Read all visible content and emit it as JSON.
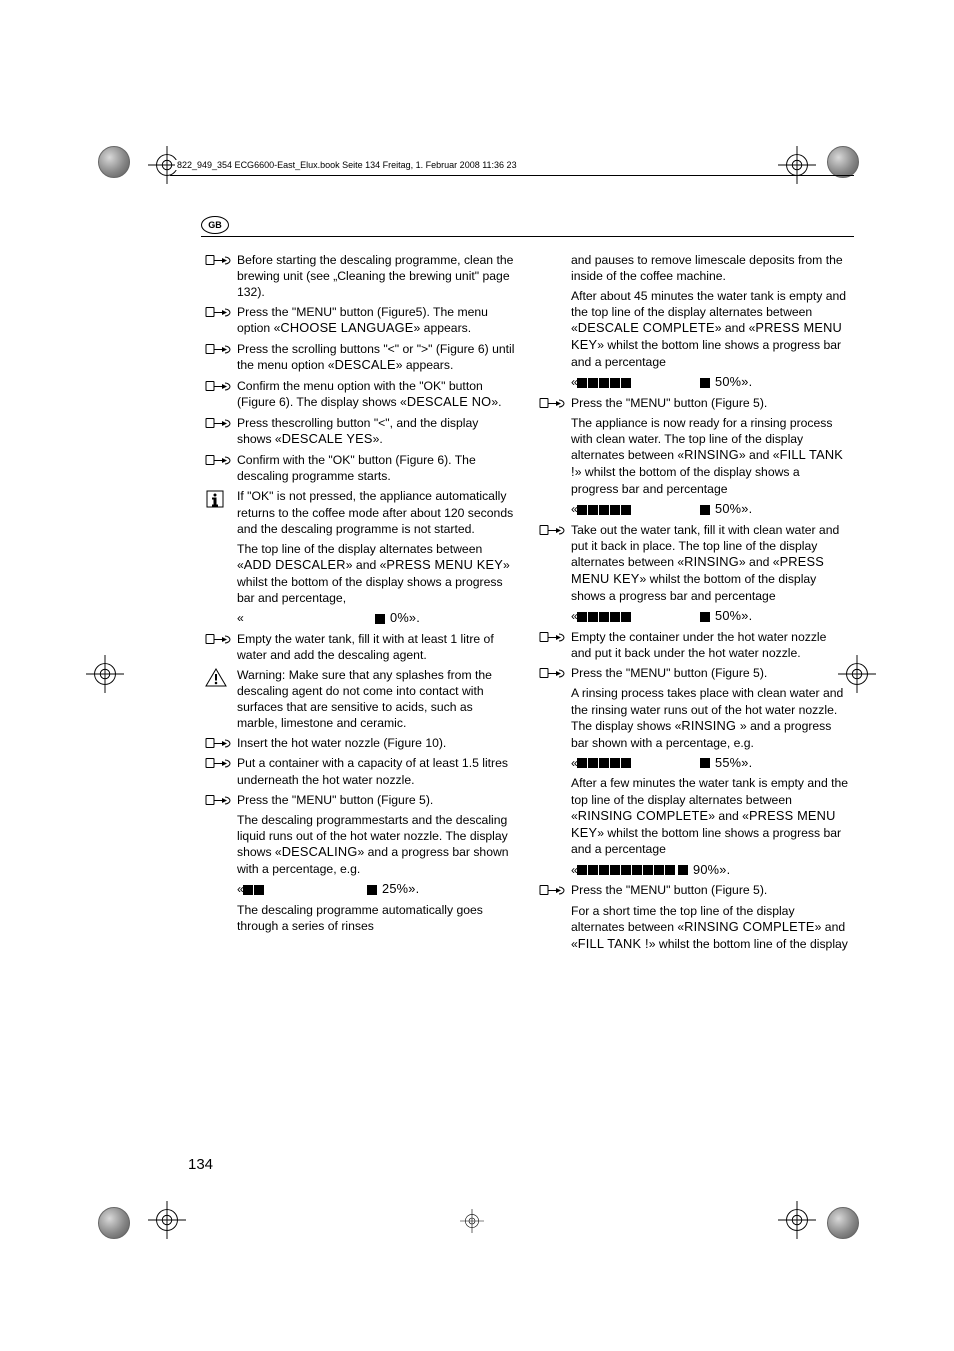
{
  "header": {
    "doc_line": "822_949_354 ECG6600-East_Elux.book  Seite 134  Freitag, 1. Februar 2008  11:36 23",
    "gb_label": "GB"
  },
  "page_number": "134",
  "left_column": [
    {
      "type": "hand",
      "text": "Before starting the descaling programme, clean the brewing unit (see „Cleaning the brewing unit\" page 132)."
    },
    {
      "type": "hand",
      "text": "Press the \"MENU\" button (Figure5). The menu option «",
      "disp": "CHOOSE LANGUAGE",
      "text2": "» appears."
    },
    {
      "type": "hand",
      "text": "Press the scrolling buttons \"<\" or \">\" (Figure 6) until the menu option «",
      "disp": "DESCALE",
      "text2": "» appears."
    },
    {
      "type": "hand",
      "text": "Confirm the menu option with the \"OK\" button (Figure 6). The display shows «",
      "disp": "DESCALE NO",
      "text2": "»."
    },
    {
      "type": "hand",
      "text": "Press thescrolling button \"<\", and the display shows «",
      "disp": "DESCALE YES",
      "text2": "»."
    },
    {
      "type": "hand",
      "text": "Confirm with the \"OK\" button (Figure 6). The descaling programme starts."
    },
    {
      "type": "info",
      "text": "If \"OK\" is not pressed, the appliance automatically returns to the coffee mode after about 120 seconds and the descaling programme is not started."
    },
    {
      "type": "cont",
      "text": "The top line of the display alternates between «",
      "disp": "ADD DESCALER",
      "text2": "» and «",
      "disp2": "PRESS MENU KEY",
      "text3": "» whilst the bottom of the display shows a progress bar and percentage,"
    },
    {
      "type": "cont_bar",
      "prefix": "«",
      "squares": 0,
      "spacer": 132,
      "end_squares": 1,
      "percent": " 0%».",
      "halflead": true
    },
    {
      "type": "hand",
      "text": "Empty the water tank, fill it with at least 1 litre of water and add the descaling agent."
    },
    {
      "type": "warn",
      "text": "Warning: Make sure that any splashes from the descaling agent do not come into contact with surfaces that are sensitive to acids, such as marble, limestone and ceramic."
    },
    {
      "type": "hand",
      "text": "Insert the hot water nozzle (Figure 10)."
    },
    {
      "type": "hand",
      "text": "Put a container with a capacity of at least 1.5 litres underneath the hot water nozzle."
    },
    {
      "type": "hand",
      "text": "Press the \"MENU\" button (Figure 5)."
    },
    {
      "type": "cont",
      "text": "The descaling programmestarts and the descaling liquid runs out of the hot water nozzle. The display shows «",
      "disp": "DESCALING",
      "text2": "» and a progress bar shown with a percentage, e.g."
    },
    {
      "type": "cont_bar",
      "prefix": "«",
      "squares": 2,
      "spacer": 102,
      "end_squares": 1,
      "percent": " 25%»."
    },
    {
      "type": "cont",
      "text": "The descaling programme automatically goes through a series of rinses"
    }
  ],
  "right_column": [
    {
      "type": "cont",
      "text": "and pauses to remove limescale deposits from the inside of the coffee machine."
    },
    {
      "type": "cont",
      "text": "After about 45 minutes the water tank is empty and the top line of the display alternates between «",
      "disp": "DESCALE COMPLETE",
      "text2": "» and «",
      "disp2": "PRESS MENU KEY",
      "text3": "» whilst the bottom line shows a progress bar and a percentage"
    },
    {
      "type": "cont_bar",
      "prefix": "«",
      "squares": 5,
      "spacer": 68,
      "end_squares": 1,
      "percent": " 50%»."
    },
    {
      "type": "hand",
      "text": "Press the \"MENU\" button (Figure 5)."
    },
    {
      "type": "cont",
      "text": "The appliance is now ready for a rinsing process with clean water. The top line of the display alternates between «",
      "disp": "RINSING",
      "text2": "» and «",
      "disp2": "FILL TANK !",
      "text3": "» whilst the bottom of the display shows a progress bar and percentage"
    },
    {
      "type": "cont_bar",
      "prefix": "«",
      "squares": 5,
      "spacer": 68,
      "end_squares": 1,
      "percent": " 50%»."
    },
    {
      "type": "hand",
      "text": "Take out the water tank, fill it with clean water and put it back in place. The top line of the display alternates between «",
      "disp": "RINSING",
      "text2": "» and «",
      "disp2": "PRESS MENU KEY",
      "text3": "» whilst the bottom of the display shows a progress bar and percentage"
    },
    {
      "type": "cont_bar",
      "prefix": "«",
      "squares": 5,
      "spacer": 68,
      "end_squares": 1,
      "percent": " 50%»."
    },
    {
      "type": "hand",
      "text": "Empty the container under the hot water nozzle and put it back under the hot water nozzle."
    },
    {
      "type": "hand",
      "text": "Press the \"MENU\" button (Figure 5)."
    },
    {
      "type": "cont",
      "text": "A rinsing process takes place with clean water and the rinsing water runs out of the hot water nozzle. The display shows «",
      "disp": "RINSING ",
      "text2": "» and a progress bar shown with a percentage, e.g."
    },
    {
      "type": "cont_bar",
      "prefix": "«",
      "squares": 5,
      "spacer": 68,
      "end_squares": 1,
      "percent": " 55%»."
    },
    {
      "type": "cont",
      "text": "After a few minutes the water tank is empty and the top line of the display alternates between «",
      "disp": "RINSING COMPLETE",
      "text2": "» and «",
      "disp2": "PRESS MENU KEY",
      "text3": "» whilst the bottom line shows a progress bar and a percentage"
    },
    {
      "type": "cont_bar",
      "prefix": "«",
      "squares": 9,
      "spacer": 2,
      "end_squares": 1,
      "percent": " 90%»."
    },
    {
      "type": "hand",
      "text": "Press the \"MENU\" button (Figure 5)."
    },
    {
      "type": "cont",
      "text": "For a short time the top line of the display alternates between «",
      "disp": "RINSING COMPLETE",
      "text2": "» and «",
      "disp2": "FILL TANK !",
      "text3": "» whilst the bottom line of the display"
    }
  ]
}
